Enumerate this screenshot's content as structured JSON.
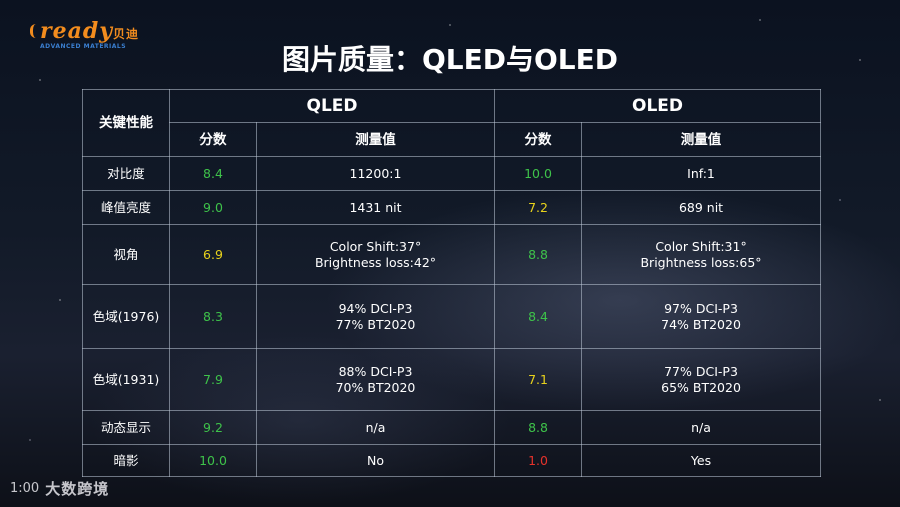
{
  "logo": {
    "name": "ready",
    "name_cn": "贝迪",
    "subtitle": "ADVANCED MATERIALS"
  },
  "title": "图片质量：QLED与OLED",
  "table": {
    "key_header": "关键性能",
    "groups": [
      "QLED",
      "OLED"
    ],
    "sub_headers": [
      "分数",
      "测量值",
      "分数",
      "测量值"
    ],
    "rows": [
      {
        "label": "对比度",
        "qled_score": "8.4",
        "qled_score_color": "#3ec24a",
        "qled_value": [
          "11200:1"
        ],
        "oled_score": "10.0",
        "oled_score_color": "#3ec24a",
        "oled_value": [
          "Inf:1"
        ]
      },
      {
        "label": "峰值亮度",
        "qled_score": "9.0",
        "qled_score_color": "#3ec24a",
        "qled_value": [
          "1431 nit"
        ],
        "oled_score": "7.2",
        "oled_score_color": "#e8d21c",
        "oled_value": [
          "689 nit"
        ]
      },
      {
        "label": "视角",
        "qled_score": "6.9",
        "qled_score_color": "#e8d21c",
        "qled_value": [
          "Color Shift:37°",
          "Brightness loss:42°"
        ],
        "oled_score": "8.8",
        "oled_score_color": "#3ec24a",
        "oled_value": [
          "Color Shift:31°",
          "Brightness loss:65°"
        ]
      },
      {
        "label": "色域(1976)",
        "qled_score": "8.3",
        "qled_score_color": "#3ec24a",
        "qled_value": [
          "94% DCI-P3",
          "77% BT2020"
        ],
        "oled_score": "8.4",
        "oled_score_color": "#3ec24a",
        "oled_value": [
          "97% DCI-P3",
          "74% BT2020"
        ]
      },
      {
        "label": "色域(1931)",
        "qled_score": "7.9",
        "qled_score_color": "#3ec24a",
        "qled_value": [
          "88% DCI-P3",
          "70% BT2020"
        ],
        "oled_score": "7.1",
        "oled_score_color": "#e8d21c",
        "oled_value": [
          "77% DCI-P3",
          "65% BT2020"
        ]
      },
      {
        "label": "动态显示",
        "qled_score": "9.2",
        "qled_score_color": "#3ec24a",
        "qled_value": [
          "n/a"
        ],
        "oled_score": "8.8",
        "oled_score_color": "#3ec24a",
        "oled_value": [
          "n/a"
        ]
      },
      {
        "label": "暗影",
        "qled_score": "10.0",
        "qled_score_color": "#3ec24a",
        "qled_value": [
          "No"
        ],
        "oled_score": "1.0",
        "oled_score_color": "#e5322b",
        "oled_value": [
          "Yes"
        ]
      }
    ]
  },
  "footer": {
    "mark": "1:00",
    "text": "大数跨境"
  }
}
